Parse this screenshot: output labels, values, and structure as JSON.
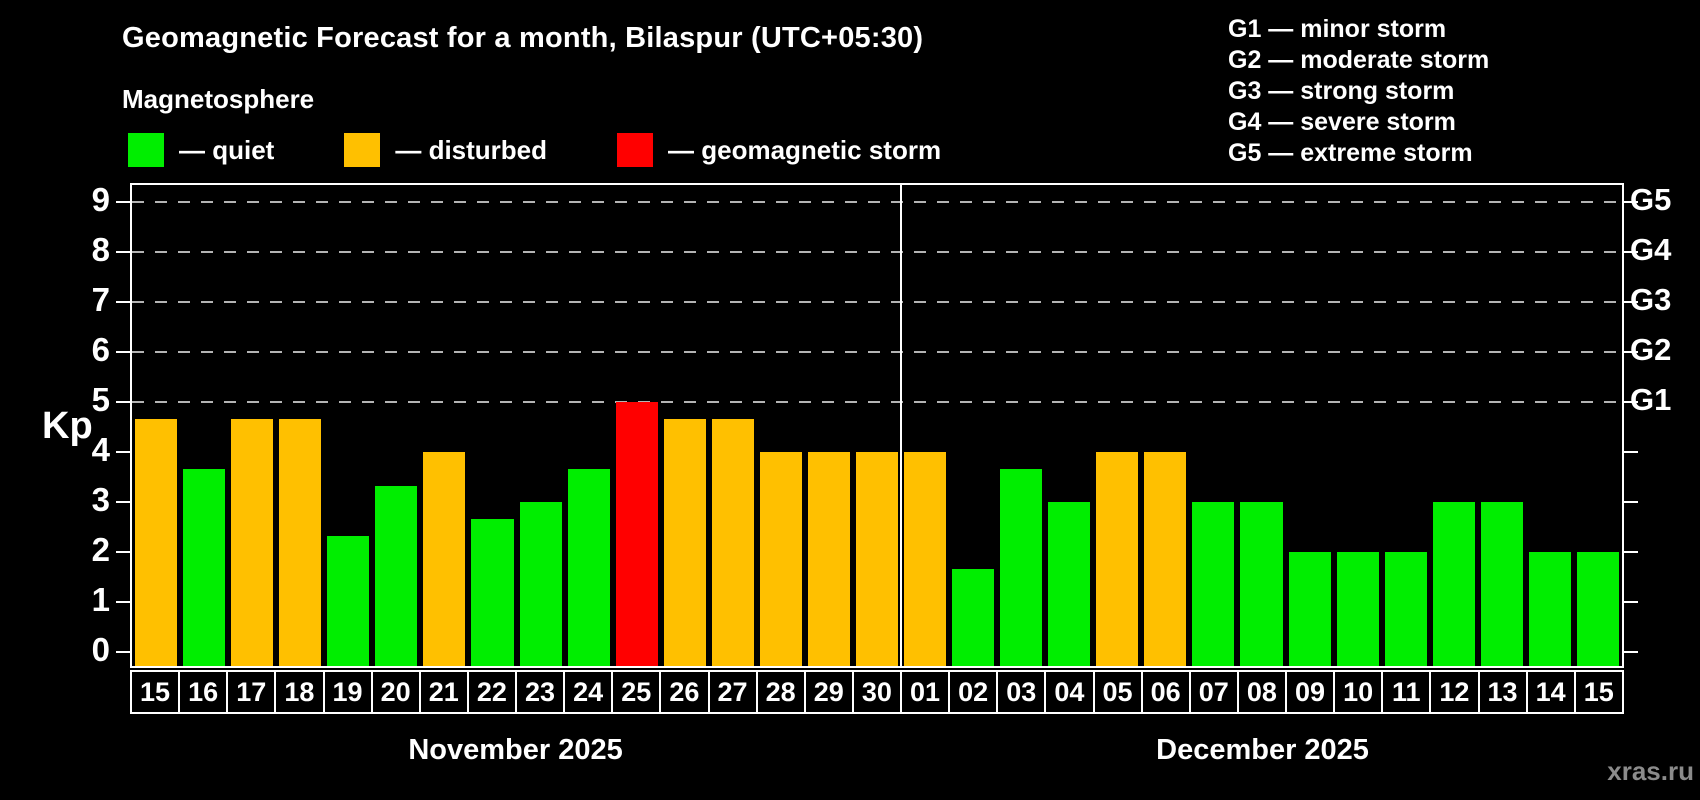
{
  "title": "Geomagnetic Forecast for a month, Bilaspur (UTC+05:30)",
  "subtitle": "Magnetosphere",
  "legend": [
    {
      "key": "quiet",
      "label": "— quiet",
      "color": "#00ee00"
    },
    {
      "key": "disturbed",
      "label": "— disturbed",
      "color": "#ffc000"
    },
    {
      "key": "storm",
      "label": "— geomagnetic storm",
      "color": "#ff0000"
    }
  ],
  "g_scale": [
    {
      "code": "G1",
      "text": "G1 — minor storm",
      "kp": 5
    },
    {
      "code": "G2",
      "text": "G2 — moderate storm",
      "kp": 6
    },
    {
      "code": "G3",
      "text": "G3 — strong storm",
      "kp": 7
    },
    {
      "code": "G4",
      "text": "G4 — severe storm",
      "kp": 8
    },
    {
      "code": "G5",
      "text": "G5 — extreme storm",
      "kp": 9
    }
  ],
  "watermark": "xras.ru",
  "chart_data": {
    "type": "bar",
    "title": "Geomagnetic Forecast for a month, Bilaspur (UTC+05:30)",
    "ylabel": "Kp",
    "ylim": [
      0,
      9.4
    ],
    "yticks": [
      0,
      1,
      2,
      3,
      4,
      5,
      6,
      7,
      8,
      9
    ],
    "gridlines": [
      5,
      6,
      7,
      8,
      9
    ],
    "grid_style": "dashed gray horizontal lines at Kp 5–9, right axis labeled G1–G5",
    "legend_position": "top-left",
    "months": [
      {
        "label": "November 2025",
        "days": [
          {
            "day": "15",
            "kp": 4.67,
            "status": "disturbed"
          },
          {
            "day": "16",
            "kp": 3.67,
            "status": "quiet"
          },
          {
            "day": "17",
            "kp": 4.67,
            "status": "disturbed"
          },
          {
            "day": "18",
            "kp": 4.67,
            "status": "disturbed"
          },
          {
            "day": "19",
            "kp": 2.33,
            "status": "quiet"
          },
          {
            "day": "20",
            "kp": 3.33,
            "status": "quiet"
          },
          {
            "day": "21",
            "kp": 4.0,
            "status": "disturbed"
          },
          {
            "day": "22",
            "kp": 2.67,
            "status": "quiet"
          },
          {
            "day": "23",
            "kp": 3.0,
            "status": "quiet"
          },
          {
            "day": "24",
            "kp": 3.67,
            "status": "quiet"
          },
          {
            "day": "25",
            "kp": 5.0,
            "status": "storm"
          },
          {
            "day": "26",
            "kp": 4.67,
            "status": "disturbed"
          },
          {
            "day": "27",
            "kp": 4.67,
            "status": "disturbed"
          },
          {
            "day": "28",
            "kp": 4.0,
            "status": "disturbed"
          },
          {
            "day": "29",
            "kp": 4.0,
            "status": "disturbed"
          },
          {
            "day": "30",
            "kp": 4.0,
            "status": "disturbed"
          }
        ]
      },
      {
        "label": "December 2025",
        "days": [
          {
            "day": "01",
            "kp": 4.0,
            "status": "disturbed"
          },
          {
            "day": "02",
            "kp": 1.67,
            "status": "quiet"
          },
          {
            "day": "03",
            "kp": 3.67,
            "status": "quiet"
          },
          {
            "day": "04",
            "kp": 3.0,
            "status": "quiet"
          },
          {
            "day": "05",
            "kp": 4.0,
            "status": "disturbed"
          },
          {
            "day": "06",
            "kp": 4.0,
            "status": "disturbed"
          },
          {
            "day": "07",
            "kp": 3.0,
            "status": "quiet"
          },
          {
            "day": "08",
            "kp": 3.0,
            "status": "quiet"
          },
          {
            "day": "09",
            "kp": 2.0,
            "status": "quiet"
          },
          {
            "day": "10",
            "kp": 2.0,
            "status": "quiet"
          },
          {
            "day": "11",
            "kp": 2.0,
            "status": "quiet"
          },
          {
            "day": "12",
            "kp": 3.0,
            "status": "quiet"
          },
          {
            "day": "13",
            "kp": 3.0,
            "status": "quiet"
          },
          {
            "day": "14",
            "kp": 2.0,
            "status": "quiet"
          },
          {
            "day": "15",
            "kp": 2.0,
            "status": "quiet"
          }
        ]
      }
    ]
  }
}
